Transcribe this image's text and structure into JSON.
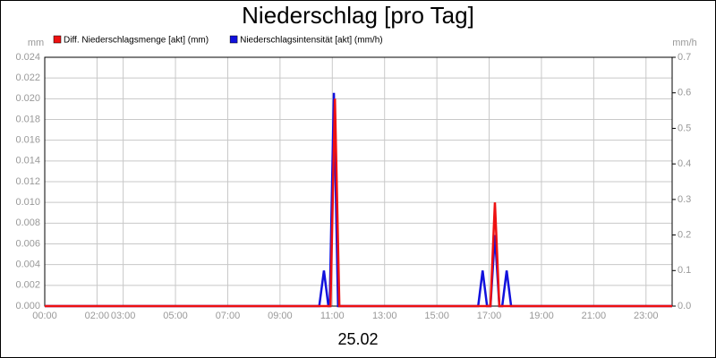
{
  "chart_data": {
    "type": "line",
    "title": "Niederschlag [pro Tag]",
    "y_unit": "mm",
    "y2_unit": "mm/h",
    "x_label": "25.02",
    "xlim": [
      0,
      24
    ],
    "xticks": [
      {
        "value": 0,
        "label": "00:00"
      },
      {
        "value": 2,
        "label": "02:00"
      },
      {
        "value": 3,
        "label": "03:00"
      },
      {
        "value": 5,
        "label": "05:00"
      },
      {
        "value": 7,
        "label": "07:00"
      },
      {
        "value": 9,
        "label": "09:00"
      },
      {
        "value": 11,
        "label": "11:00"
      },
      {
        "value": 13,
        "label": "13:00"
      },
      {
        "value": 15,
        "label": "15:00"
      },
      {
        "value": 17,
        "label": "17:00"
      },
      {
        "value": 19,
        "label": "19:00"
      },
      {
        "value": 21,
        "label": "21:00"
      },
      {
        "value": 23,
        "label": "23:00"
      }
    ],
    "ylim": [
      0,
      0.024
    ],
    "yticks": [
      {
        "value": 0,
        "label": "0.000"
      },
      {
        "value": 0.002,
        "label": "0.002"
      },
      {
        "value": 0.004,
        "label": "0.004"
      },
      {
        "value": 0.006,
        "label": "0.006"
      },
      {
        "value": 0.008,
        "label": "0.008"
      },
      {
        "value": 0.01,
        "label": "0.010"
      },
      {
        "value": 0.012,
        "label": "0.012"
      },
      {
        "value": 0.014,
        "label": "0.014"
      },
      {
        "value": 0.016,
        "label": "0.016"
      },
      {
        "value": 0.018,
        "label": "0.018"
      },
      {
        "value": 0.02,
        "label": "0.020"
      },
      {
        "value": 0.022,
        "label": "0.022"
      },
      {
        "value": 0.024,
        "label": "0.024"
      }
    ],
    "y2lim": [
      0,
      0.7
    ],
    "y2ticks": [
      {
        "value": 0,
        "label": "0.0"
      },
      0.1,
      0.2,
      0.3,
      0.4,
      0.5,
      0.6,
      0.7
    ],
    "grid": true,
    "series": [
      {
        "name": "Diff. Niederschlagsmenge [akt] (mm)",
        "color": "#ee1111",
        "axis": "y",
        "x": [
          0,
          10.93,
          11.1,
          11.27,
          17.05,
          17.22,
          17.39,
          24
        ],
        "values": [
          0,
          0,
          0.02,
          0,
          0,
          0.01,
          0,
          0
        ]
      },
      {
        "name": "Niederschlagsintensität [akt] (mm/h)",
        "color": "#1111dd",
        "axis": "y2",
        "x": [
          0,
          10.5,
          10.68,
          10.85,
          10.9,
          11.06,
          11.22,
          16.58,
          16.75,
          16.92,
          17.05,
          17.22,
          17.39,
          17.5,
          17.67,
          17.84,
          24
        ],
        "values": [
          0,
          0,
          0.1,
          0,
          0,
          0.6,
          0,
          0,
          0.1,
          0,
          0,
          0.2,
          0,
          0,
          0.1,
          0,
          0
        ]
      }
    ]
  }
}
